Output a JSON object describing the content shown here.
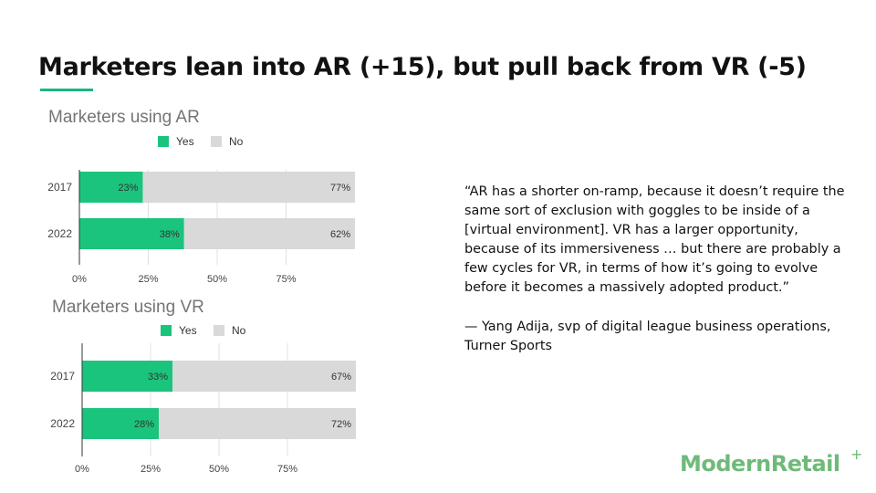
{
  "slide": {
    "title": "Marketers lean into AR (+15), but pull back from VR (-5)",
    "quote": "“AR has a shorter on-ramp, because it doesn’t require the same sort of exclusion with goggles to be inside of a [virtual environment]. VR has a larger opportunity, because of its immersiveness … but there are probably a few cycles for VR, in terms of how it’s going to evolve before it becomes a massively adopted product.”",
    "attribution": "— Yang Adija, svp of digital league business operations, Turner Sports",
    "logo_text": "ModernRetail",
    "logo_plus": "+"
  },
  "colors": {
    "accent": "#1bb57e",
    "yes": "#1bc47d",
    "no": "#d9d9d9",
    "logo": "#6fba7a"
  },
  "chart_data": [
    {
      "type": "bar",
      "orientation": "horizontal",
      "stacked": true,
      "title": "Marketers using AR",
      "categories": [
        "2017",
        "2022"
      ],
      "series": [
        {
          "name": "Yes",
          "values": [
            23,
            38
          ],
          "labels": [
            "23%",
            "38%"
          ]
        },
        {
          "name": "No",
          "values": [
            77,
            62
          ],
          "labels": [
            "77%",
            "62%"
          ]
        }
      ],
      "xlim": [
        0,
        100
      ],
      "xticks": [
        "0%",
        "25%",
        "50%",
        "75%"
      ],
      "legend": "top",
      "grid": true
    },
    {
      "type": "bar",
      "orientation": "horizontal",
      "stacked": true,
      "title": "Marketers using VR",
      "categories": [
        "2017",
        "2022"
      ],
      "series": [
        {
          "name": "Yes",
          "values": [
            33,
            28
          ],
          "labels": [
            "33%",
            "28%"
          ]
        },
        {
          "name": "No",
          "values": [
            67,
            72
          ],
          "labels": [
            "67%",
            "72%"
          ]
        }
      ],
      "xlim": [
        0,
        100
      ],
      "xticks": [
        "0%",
        "25%",
        "50%",
        "75%"
      ],
      "legend": "top",
      "grid": true
    }
  ]
}
